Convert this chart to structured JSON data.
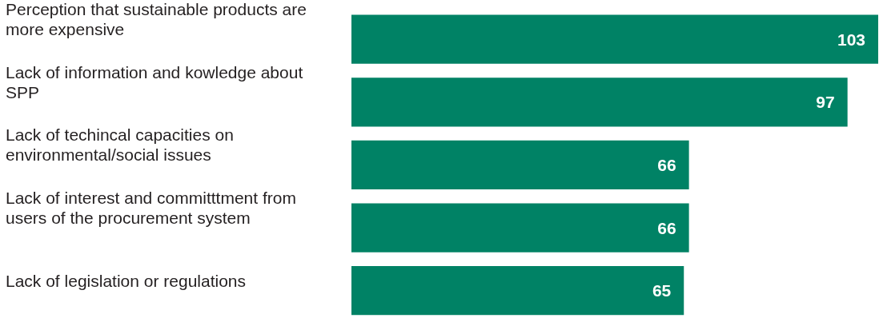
{
  "chart_data": {
    "type": "bar",
    "orientation": "horizontal",
    "categories": [
      "Perception that sustainable products are more expensive",
      "Lack of information and kowledge about SPP",
      "Lack of techincal capacities on environmental/social issues",
      "Lack of interest and committtment from users of the procurement system",
      "Lack of legislation or regulations"
    ],
    "values": [
      103,
      97,
      66,
      66,
      65
    ],
    "color": "#008265",
    "data_labels": true
  }
}
